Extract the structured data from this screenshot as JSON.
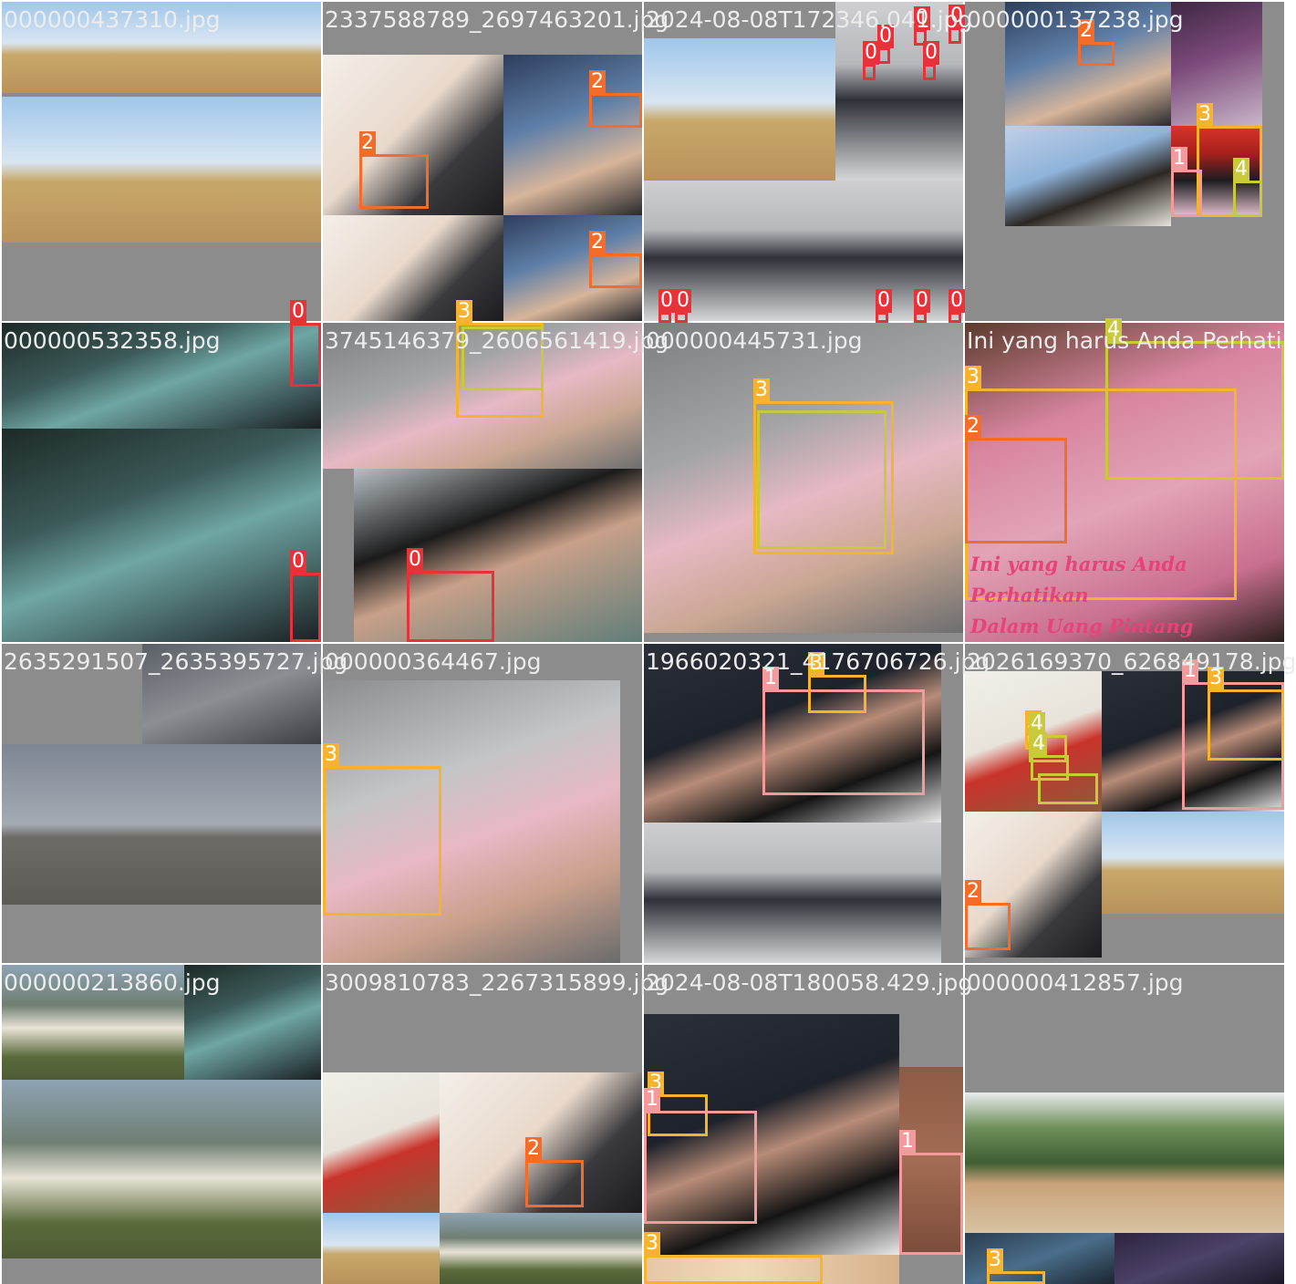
{
  "classes": {
    "0": {
      "color": "#e8323a"
    },
    "1": {
      "color": "#f49a9c"
    },
    "2": {
      "color": "#f36c2a"
    },
    "3": {
      "color": "#f7b32b"
    },
    "4": {
      "color": "#c9c93a"
    },
    "5": {
      "color": "#f7b32b"
    }
  },
  "tiles": [
    {
      "label": "000000437310.jpg",
      "photos": [
        "giraffe",
        "giraffe",
        "giraffe",
        "giraffe"
      ],
      "boxes": []
    },
    {
      "label": "2337588789_2697463201.jpg",
      "photos": [
        "card-terminal",
        "atm-hand",
        "card-terminal",
        "atm-hand"
      ],
      "boxes": [
        {
          "cls": "2",
          "tag": "2"
        },
        {
          "cls": "2",
          "tag": "2"
        },
        {
          "cls": "2",
          "tag": "2"
        }
      ]
    },
    {
      "label": "2024-08-08T172346.041.jpg",
      "photos": [
        "giraffe",
        "store-display",
        "store-display",
        "store-display"
      ],
      "boxes": [
        {
          "cls": "0",
          "tag": "0"
        },
        {
          "cls": "0",
          "tag": "0"
        },
        {
          "cls": "0",
          "tag": "0"
        },
        {
          "cls": "0",
          "tag": "0"
        },
        {
          "cls": "0",
          "tag": "0"
        },
        {
          "cls": "0",
          "tag": "0"
        },
        {
          "cls": "0",
          "tag": "0"
        },
        {
          "cls": "0",
          "tag": "0"
        },
        {
          "cls": "0",
          "tag": "0"
        },
        {
          "cls": "0",
          "tag": "0"
        }
      ]
    },
    {
      "label": "000000137238.jpg",
      "photos": [
        "atm-hand",
        "cat-purple",
        "cat-bed",
        "wallet-money"
      ],
      "boxes": [
        {
          "cls": "2",
          "tag": "2"
        },
        {
          "cls": "3",
          "tag": "3"
        },
        {
          "cls": "1",
          "tag": "1"
        },
        {
          "cls": "4",
          "tag": "4"
        }
      ]
    },
    {
      "label": "000000532358.jpg",
      "photos": [
        "umbrella-night",
        "umbrella-night"
      ],
      "boxes": [
        {
          "cls": "0",
          "tag": "0"
        },
        {
          "cls": "0",
          "tag": "0"
        }
      ]
    },
    {
      "label": "3745146379_2606561419.jpg",
      "photos": [
        "money-counter",
        "woman-phone"
      ],
      "boxes": [
        {
          "cls": "3",
          "tag": "3"
        },
        {
          "cls": "4",
          "tag": ""
        },
        {
          "cls": "0",
          "tag": "0"
        }
      ]
    },
    {
      "label": "000000445731.jpg",
      "photos": [
        "money-counter"
      ],
      "boxes": [
        {
          "cls": "3",
          "tag": "3"
        },
        {
          "cls": "4",
          "tag": ""
        }
      ]
    },
    {
      "label": "Ini yang harus Anda Perhati",
      "caption_line1": "Ini yang harus Anda Perhatikan",
      "caption_line2": "Dalam Uang Pintang",
      "photos": [
        "rupiah"
      ],
      "boxes": [
        {
          "cls": "4",
          "tag": "4"
        },
        {
          "cls": "3",
          "tag": "3"
        },
        {
          "cls": "2",
          "tag": "2"
        }
      ]
    },
    {
      "label": "2635291507_2635395727.jpg",
      "photos": [
        "atm-dark",
        "giraffe-gray",
        "giraffe-gray"
      ],
      "boxes": []
    },
    {
      "label": "000000364467.jpg",
      "photos": [
        "keypad-money"
      ],
      "boxes": [
        {
          "cls": "3",
          "tag": "3"
        }
      ]
    },
    {
      "label": "1966020321_4176706726.jpg",
      "photos": [
        "suit-wallet",
        "store-display"
      ],
      "boxes": [
        {
          "cls": "1",
          "tag": "1"
        },
        {
          "cls": "3",
          "tag": "3"
        }
      ]
    },
    {
      "label": "2026169370_626849178.jpg",
      "photos": [
        "paper-desk",
        "suit-wallet",
        "card-terminal",
        "giraffe"
      ],
      "boxes": [
        {
          "cls": "1",
          "tag": "1"
        },
        {
          "cls": "3",
          "tag": "3"
        },
        {
          "cls": "3",
          "tag": "3"
        },
        {
          "cls": "4",
          "tag": "4"
        },
        {
          "cls": "4",
          "tag": "4"
        },
        {
          "cls": "4",
          "tag": ""
        },
        {
          "cls": "2",
          "tag": "2"
        }
      ]
    },
    {
      "label": "000000213860.jpg",
      "photos": [
        "sheep",
        "umbrella-night",
        "sheep",
        "sheep"
      ],
      "boxes": []
    },
    {
      "label": "3009810783_2267315899.jpg",
      "photos": [
        "paper-desk",
        "card-terminal",
        "giraffe",
        "sheep"
      ],
      "boxes": [
        {
          "cls": "2",
          "tag": "2"
        }
      ]
    },
    {
      "label": "2024-08-08T180058.429.jpg",
      "photos": [
        "suit-wallet",
        "wood-wall",
        "money-strip"
      ],
      "boxes": [
        {
          "cls": "3",
          "tag": "3"
        },
        {
          "cls": "1",
          "tag": "1"
        },
        {
          "cls": "1",
          "tag": "1"
        },
        {
          "cls": "3",
          "tag": "3"
        }
      ]
    },
    {
      "label": "000000412857.jpg",
      "photos": [
        "zoo-giraffe",
        "zoo-giraffe",
        "dark-blue",
        "dark-purple"
      ],
      "boxes": [
        {
          "cls": "3",
          "tag": "3"
        }
      ]
    }
  ]
}
